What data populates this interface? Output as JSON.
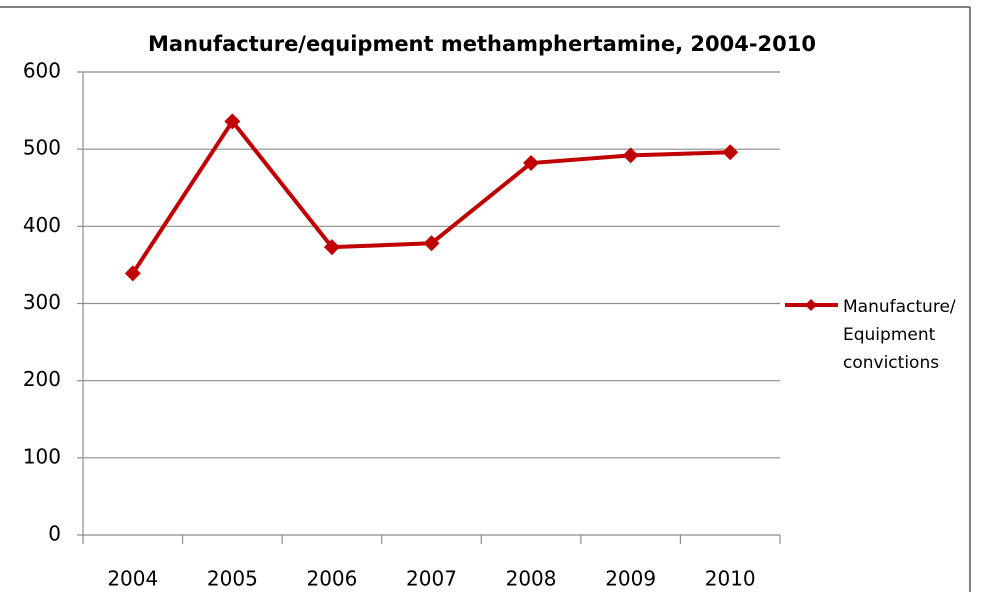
{
  "chart_data": {
    "type": "line",
    "title": "Manufacture/equipment methamphertamine, 2004-2010",
    "categories": [
      "2004",
      "2005",
      "2006",
      "2007",
      "2008",
      "2009",
      "2010"
    ],
    "series": [
      {
        "name": "Manufacture/ Equipment convictions",
        "color": "#c00000",
        "values": [
          339,
          536,
          373,
          378,
          482,
          492,
          496
        ]
      }
    ],
    "ylim": [
      0,
      600
    ],
    "yticks": [
      0,
      100,
      200,
      300,
      400,
      500,
      600
    ],
    "grid": true,
    "legend": "right"
  }
}
